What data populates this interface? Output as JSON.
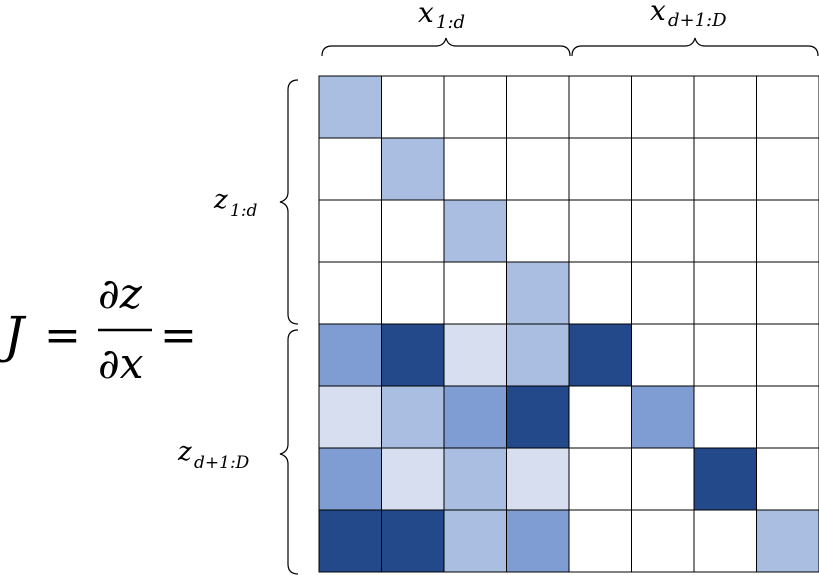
{
  "equation": {
    "lhs": "J",
    "equals": "=",
    "numerator": "∂z",
    "denominator": "∂x",
    "equals2": "="
  },
  "column_labels": [
    {
      "base": "x",
      "sub": "1:d"
    },
    {
      "base": "x",
      "sub": "d+1:D"
    }
  ],
  "row_labels": [
    {
      "base": "z",
      "sub": "1:d"
    },
    {
      "base": "z",
      "sub": "d+1:D"
    }
  ],
  "colors": {
    "0": "#ffffff",
    "1": "#d6deef",
    "2": "#a9bee0",
    "3": "#7f9dd3",
    "4": "#23498a"
  },
  "matrix": [
    [
      2,
      0,
      0,
      0,
      0,
      0,
      0,
      0
    ],
    [
      0,
      2,
      0,
      0,
      0,
      0,
      0,
      0
    ],
    [
      0,
      0,
      2,
      0,
      0,
      0,
      0,
      0
    ],
    [
      0,
      0,
      0,
      2,
      0,
      0,
      0,
      0
    ],
    [
      3,
      4,
      1,
      2,
      4,
      0,
      0,
      0
    ],
    [
      1,
      2,
      3,
      4,
      0,
      3,
      0,
      0
    ],
    [
      3,
      1,
      2,
      1,
      0,
      0,
      4,
      0
    ],
    [
      4,
      4,
      2,
      3,
      0,
      0,
      0,
      2
    ]
  ]
}
